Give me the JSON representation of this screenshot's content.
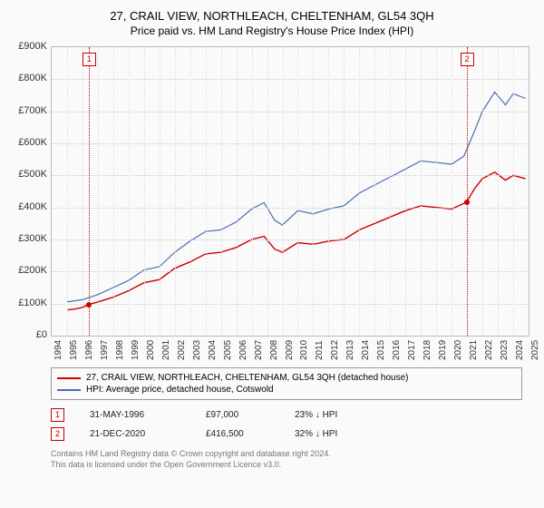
{
  "title": "27, CRAIL VIEW, NORTHLEACH, CHELTENHAM, GL54 3QH",
  "subtitle": "Price paid vs. HM Land Registry's House Price Index (HPI)",
  "chart": {
    "type": "line",
    "background_color": "#fafafa",
    "grid_color": "#cccccc",
    "axis_color": "#bbbbbb",
    "xlim": [
      1994,
      2025
    ],
    "ylim": [
      0,
      900000
    ],
    "ytick_step": 100000,
    "yticks": [
      "£0",
      "£100K",
      "£200K",
      "£300K",
      "£400K",
      "£500K",
      "£600K",
      "£700K",
      "£800K",
      "£900K"
    ],
    "xticks": [
      "1994",
      "1995",
      "1996",
      "1997",
      "1998",
      "1999",
      "2000",
      "2001",
      "2002",
      "2003",
      "2004",
      "2005",
      "2006",
      "2007",
      "2008",
      "2009",
      "2010",
      "2011",
      "2012",
      "2013",
      "2014",
      "2015",
      "2016",
      "2017",
      "2018",
      "2019",
      "2020",
      "2021",
      "2022",
      "2023",
      "2024",
      "2025"
    ],
    "series": [
      {
        "name": "27, CRAIL VIEW, NORTHLEACH, CHELTENHAM, GL54 3QH (detached house)",
        "color": "#cc0000",
        "width": 1.4,
        "data": [
          [
            1995,
            80000
          ],
          [
            1995.5,
            83000
          ],
          [
            1996,
            88000
          ],
          [
            1996.4,
            97000
          ],
          [
            1997,
            105000
          ],
          [
            1998,
            120000
          ],
          [
            1999,
            140000
          ],
          [
            2000,
            165000
          ],
          [
            2001,
            175000
          ],
          [
            2002,
            210000
          ],
          [
            2003,
            230000
          ],
          [
            2004,
            255000
          ],
          [
            2005,
            260000
          ],
          [
            2006,
            275000
          ],
          [
            2007,
            300000
          ],
          [
            2007.8,
            310000
          ],
          [
            2008.5,
            270000
          ],
          [
            2009,
            260000
          ],
          [
            2010,
            290000
          ],
          [
            2011,
            285000
          ],
          [
            2012,
            295000
          ],
          [
            2013,
            300000
          ],
          [
            2014,
            330000
          ],
          [
            2015,
            350000
          ],
          [
            2016,
            370000
          ],
          [
            2017,
            390000
          ],
          [
            2018,
            405000
          ],
          [
            2019,
            400000
          ],
          [
            2020,
            395000
          ],
          [
            2020.97,
            416500
          ],
          [
            2021.5,
            460000
          ],
          [
            2022,
            490000
          ],
          [
            2022.8,
            510000
          ],
          [
            2023.5,
            485000
          ],
          [
            2024,
            500000
          ],
          [
            2024.8,
            490000
          ]
        ]
      },
      {
        "name": "HPI: Average price, detached house, Cotswold",
        "color": "#4a6fb3",
        "width": 1.2,
        "data": [
          [
            1995,
            105000
          ],
          [
            1996,
            112000
          ],
          [
            1997,
            128000
          ],
          [
            1998,
            150000
          ],
          [
            1999,
            172000
          ],
          [
            2000,
            205000
          ],
          [
            2001,
            215000
          ],
          [
            2002,
            260000
          ],
          [
            2003,
            295000
          ],
          [
            2004,
            325000
          ],
          [
            2005,
            330000
          ],
          [
            2006,
            355000
          ],
          [
            2007,
            395000
          ],
          [
            2007.8,
            415000
          ],
          [
            2008.5,
            360000
          ],
          [
            2009,
            345000
          ],
          [
            2010,
            390000
          ],
          [
            2011,
            380000
          ],
          [
            2012,
            395000
          ],
          [
            2013,
            405000
          ],
          [
            2014,
            445000
          ],
          [
            2015,
            470000
          ],
          [
            2016,
            495000
          ],
          [
            2017,
            520000
          ],
          [
            2018,
            545000
          ],
          [
            2019,
            540000
          ],
          [
            2020,
            535000
          ],
          [
            2020.8,
            560000
          ],
          [
            2021.5,
            640000
          ],
          [
            2022,
            700000
          ],
          [
            2022.8,
            760000
          ],
          [
            2023.5,
            720000
          ],
          [
            2024,
            755000
          ],
          [
            2024.8,
            740000
          ]
        ]
      }
    ],
    "markers": [
      {
        "id": "1",
        "x": 1996.4,
        "y": 97000,
        "color": "#cc0000"
      },
      {
        "id": "2",
        "x": 2020.97,
        "y": 416500,
        "color": "#cc0000"
      }
    ]
  },
  "legend": {
    "items": [
      {
        "color": "#cc0000",
        "label": "27, CRAIL VIEW, NORTHLEACH, CHELTENHAM, GL54 3QH (detached house)"
      },
      {
        "color": "#4a6fb3",
        "label": "HPI: Average price, detached house, Cotswold"
      }
    ]
  },
  "sales": [
    {
      "id": "1",
      "color": "#cc0000",
      "date": "31-MAY-1996",
      "price": "£97,000",
      "pct": "23% ↓ HPI"
    },
    {
      "id": "2",
      "color": "#cc0000",
      "date": "21-DEC-2020",
      "price": "£416,500",
      "pct": "32% ↓ HPI"
    }
  ],
  "footer": {
    "line1": "Contains HM Land Registry data © Crown copyright and database right 2024.",
    "line2": "This data is licensed under the Open Government Licence v3.0."
  }
}
